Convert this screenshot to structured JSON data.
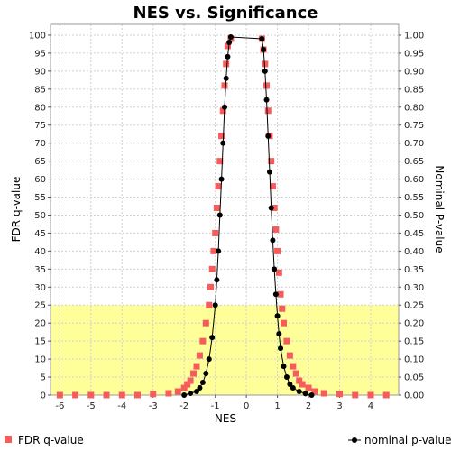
{
  "chart_data": {
    "type": "scatter",
    "title": "NES vs. Significance",
    "xlabel": "NES",
    "ylabel_left": "FDR q-value",
    "ylabel_right": "Nominal P-value",
    "xlim": [
      -6.3,
      4.9
    ],
    "ylim_left": [
      0,
      103
    ],
    "ylim_right": [
      0,
      1.03
    ],
    "x_ticks": [
      "-6",
      "-5",
      "-4",
      "-3",
      "-2",
      "-1",
      "0",
      "1",
      "2",
      "3",
      "4"
    ],
    "y_left_ticks": [
      "0",
      "5",
      "10",
      "15",
      "20",
      "25",
      "30",
      "35",
      "40",
      "45",
      "50",
      "55",
      "60",
      "65",
      "70",
      "75",
      "80",
      "85",
      "90",
      "95",
      "100"
    ],
    "y_right_ticks": [
      "0.00",
      "0.05",
      "0.10",
      "0.15",
      "0.20",
      "0.25",
      "0.30",
      "0.35",
      "0.40",
      "0.45",
      "0.50",
      "0.55",
      "0.60",
      "0.65",
      "0.70",
      "0.75",
      "0.80",
      "0.85",
      "0.90",
      "0.95",
      "1.00"
    ],
    "highlight_region": {
      "y_from": 0,
      "y_to": 25,
      "color": "#ffff99"
    },
    "grid": true,
    "legend_position": "bottom",
    "series": [
      {
        "name": "FDR q-value",
        "axis": "left",
        "color": "#f75c5c",
        "marker": "square",
        "points": [
          [
            -6.0,
            0
          ],
          [
            -5.5,
            0
          ],
          [
            -5.0,
            0
          ],
          [
            -4.5,
            0
          ],
          [
            -4.0,
            0
          ],
          [
            -3.5,
            0
          ],
          [
            -3.0,
            0.3
          ],
          [
            -2.5,
            0.5
          ],
          [
            -2.2,
            1
          ],
          [
            -2.0,
            2
          ],
          [
            -1.9,
            3
          ],
          [
            -1.8,
            4
          ],
          [
            -1.7,
            6
          ],
          [
            -1.6,
            8
          ],
          [
            -1.5,
            11
          ],
          [
            -1.4,
            15
          ],
          [
            -1.3,
            20
          ],
          [
            -1.2,
            25
          ],
          [
            -1.15,
            30
          ],
          [
            -1.1,
            35
          ],
          [
            -1.05,
            40
          ],
          [
            -1.0,
            45
          ],
          [
            -0.95,
            52
          ],
          [
            -0.9,
            58
          ],
          [
            -0.85,
            65
          ],
          [
            -0.8,
            72
          ],
          [
            -0.75,
            79
          ],
          [
            -0.7,
            86
          ],
          [
            -0.65,
            92
          ],
          [
            -0.6,
            97
          ],
          [
            -0.5,
            99
          ],
          [
            0.5,
            99
          ],
          [
            0.55,
            96
          ],
          [
            0.6,
            92
          ],
          [
            0.65,
            86
          ],
          [
            0.7,
            79
          ],
          [
            0.75,
            72
          ],
          [
            0.8,
            65
          ],
          [
            0.85,
            58
          ],
          [
            0.9,
            52
          ],
          [
            0.95,
            46
          ],
          [
            1.0,
            40
          ],
          [
            1.05,
            34
          ],
          [
            1.1,
            28
          ],
          [
            1.15,
            24
          ],
          [
            1.2,
            20
          ],
          [
            1.3,
            15
          ],
          [
            1.4,
            11
          ],
          [
            1.5,
            8
          ],
          [
            1.6,
            6
          ],
          [
            1.7,
            4
          ],
          [
            1.8,
            3
          ],
          [
            2.0,
            2
          ],
          [
            2.2,
            1
          ],
          [
            2.5,
            0.5
          ],
          [
            3.0,
            0.3
          ],
          [
            3.5,
            0
          ],
          [
            4.0,
            0
          ],
          [
            4.5,
            0
          ]
        ]
      },
      {
        "name": "nominal p-value",
        "axis": "right",
        "color": "#000000",
        "marker": "circle",
        "points": [
          [
            -2.0,
            0
          ],
          [
            -1.8,
            0.005
          ],
          [
            -1.6,
            0.01
          ],
          [
            -1.5,
            0.02
          ],
          [
            -1.4,
            0.035
          ],
          [
            -1.3,
            0.06
          ],
          [
            -1.2,
            0.1
          ],
          [
            -1.1,
            0.16
          ],
          [
            -1.0,
            0.25
          ],
          [
            -0.95,
            0.32
          ],
          [
            -0.9,
            0.4
          ],
          [
            -0.85,
            0.5
          ],
          [
            -0.8,
            0.6
          ],
          [
            -0.75,
            0.7
          ],
          [
            -0.7,
            0.8
          ],
          [
            -0.65,
            0.88
          ],
          [
            -0.6,
            0.94
          ],
          [
            -0.55,
            0.98
          ],
          [
            -0.5,
            0.995
          ],
          [
            0.5,
            0.99
          ],
          [
            0.55,
            0.96
          ],
          [
            0.6,
            0.9
          ],
          [
            0.65,
            0.82
          ],
          [
            0.7,
            0.72
          ],
          [
            0.75,
            0.62
          ],
          [
            0.8,
            0.52
          ],
          [
            0.85,
            0.43
          ],
          [
            0.9,
            0.35
          ],
          [
            0.95,
            0.28
          ],
          [
            1.0,
            0.22
          ],
          [
            1.05,
            0.17
          ],
          [
            1.1,
            0.13
          ],
          [
            1.2,
            0.08
          ],
          [
            1.3,
            0.05
          ],
          [
            1.4,
            0.03
          ],
          [
            1.5,
            0.02
          ],
          [
            1.7,
            0.01
          ],
          [
            1.9,
            0.004
          ],
          [
            2.1,
            0
          ]
        ]
      }
    ]
  }
}
